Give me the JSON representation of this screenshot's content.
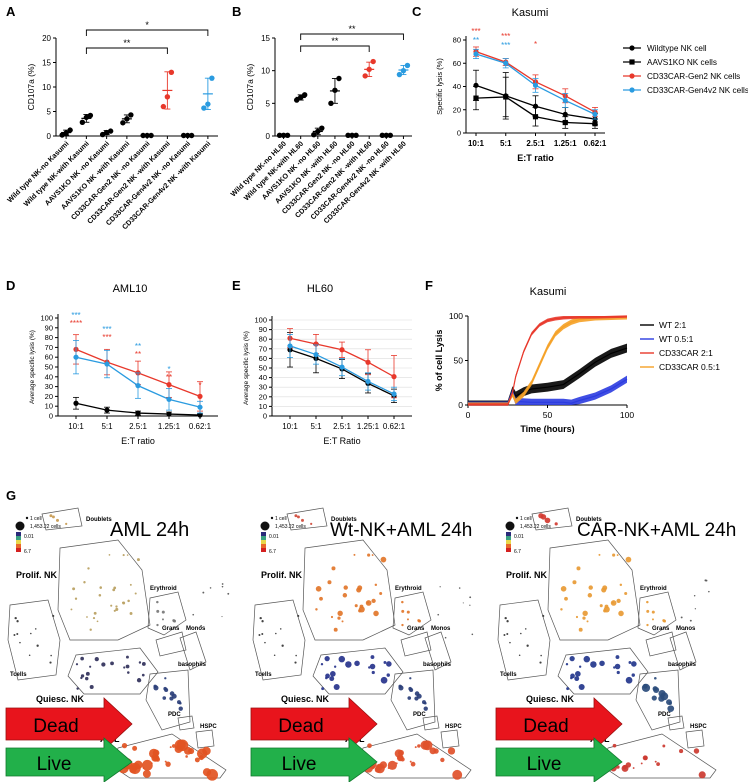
{
  "chart_data": [
    {
      "panel": "A",
      "type": "scatter",
      "ylabel": "CD107a (%)",
      "ylim": [
        0,
        20
      ],
      "yticks": [
        "0",
        "5",
        "10",
        "15",
        "20"
      ],
      "categories": [
        "Wild type NK-no Kasumi",
        "Wild type NK-with Kasumi",
        "AAVS1KO NK -no Kasumi",
        "AAVS1KO NK -with Kasumi",
        "CD33CAR-Gen2 NK -no Kasumi",
        "CD33CAR-Gen2 NK -with Kasumi",
        "CD33CAR-Gen4v2 NK -no Kasumi",
        "CD33CAR-Gen4v2 NK -with Kasumi"
      ],
      "colors": [
        "#000000",
        "#000000",
        "#000000",
        "#000000",
        "#000000",
        "#e8382b",
        "#000000",
        "#2a9be0"
      ],
      "points": [
        [
          0.2,
          0.6,
          1.2
        ],
        [
          2.8,
          3.8,
          4.2
        ],
        [
          0.3,
          0.7,
          1.0
        ],
        [
          2.7,
          3.5,
          4.3
        ],
        [
          0.1,
          0.1,
          0.1
        ],
        [
          6.0,
          8.0,
          13.0
        ],
        [
          0.1,
          0.1,
          0.1
        ],
        [
          5.7,
          6.5,
          11.8
        ]
      ],
      "means": [
        0.7,
        3.6,
        0.7,
        3.5,
        0.1,
        9.3,
        0.1,
        8.6
      ],
      "errors": [
        0.5,
        0.8,
        0.4,
        0.8,
        0.0,
        3.8,
        0.0,
        3.2
      ],
      "significance": [
        {
          "from": 1,
          "to": 5,
          "label": "**"
        },
        {
          "from": 1,
          "to": 7,
          "label": "*"
        }
      ]
    },
    {
      "panel": "B",
      "type": "scatter",
      "ylabel": "CD107a (%)",
      "ylim": [
        0,
        15
      ],
      "yticks": [
        "0",
        "5",
        "10",
        "15"
      ],
      "categories": [
        "Wild type NK-no HL60",
        "Wild type NK-with HL60",
        "AAVS1KO NK -no HL60",
        "AAVS1KO NK -with HL60",
        "CD33CAR-Gen2 NK -no HL60",
        "CD33CAR-Gen2 NK -with HL60",
        "CD33CAR-Gen4v2 NK -no HL60",
        "CD33CAR-Gen4v2 NK -with HL60"
      ],
      "colors": [
        "#000000",
        "#000000",
        "#000000",
        "#000000",
        "#000000",
        "#e8382b",
        "#000000",
        "#2a9be0"
      ],
      "points": [
        [
          0.1,
          0.1,
          0.1
        ],
        [
          5.5,
          5.9,
          6.3
        ],
        [
          0.2,
          0.7,
          1.2
        ],
        [
          5.0,
          7.0,
          8.8
        ],
        [
          0.1,
          0.1,
          0.1
        ],
        [
          9.2,
          10.2,
          11.4
        ],
        [
          0.1,
          0.1,
          0.1
        ],
        [
          9.4,
          10.0,
          10.8
        ]
      ],
      "means": [
        0.1,
        5.9,
        0.7,
        6.9,
        0.1,
        10.2,
        0.1,
        10.1
      ],
      "errors": [
        0.0,
        0.4,
        0.5,
        1.9,
        0.0,
        1.1,
        0.0,
        0.7
      ],
      "significance": [
        {
          "from": 1,
          "to": 5,
          "label": "**"
        },
        {
          "from": 1,
          "to": 7,
          "label": "**"
        }
      ]
    },
    {
      "panel": "C",
      "type": "line",
      "title": "Kasumi",
      "xlabel": "E:T ratio",
      "ylabel": "Specific lysis (%)",
      "ylim": [
        0,
        80
      ],
      "yticks": [
        "0",
        "20",
        "40",
        "60",
        "80"
      ],
      "categories": [
        "10:1",
        "5:1",
        "2.5:1",
        "1.25:1",
        "0.62:1"
      ],
      "series": [
        {
          "name": "Wildtype NK cell",
          "color": "#000000",
          "marker": "circle",
          "values": [
            41,
            32,
            23,
            16,
            12
          ],
          "err": [
            13,
            20,
            9,
            6,
            5
          ]
        },
        {
          "name": "AAVS1KO NK cells",
          "color": "#000000",
          "marker": "square",
          "values": [
            30,
            31,
            14,
            9,
            8
          ],
          "err": [
            10,
            17,
            8,
            5,
            4
          ]
        },
        {
          "name": "CD33CAR-Gen2 NK cells",
          "color": "#e8382b",
          "marker": "circle",
          "values": [
            70,
            61,
            44,
            32,
            18
          ],
          "err": [
            4,
            3,
            6,
            6,
            4
          ]
        },
        {
          "name": "CD33CAR-Gen4v2 NK cells",
          "color": "#2a9be0",
          "marker": "circle",
          "values": [
            68,
            60,
            41,
            28,
            16
          ],
          "err": [
            4,
            4,
            6,
            6,
            4
          ]
        }
      ],
      "annotations": [
        {
          "category": 0,
          "lines": [
            {
              "text": "***",
              "color": "#e8382b"
            },
            {
              "text": "**",
              "color": "#2a9be0"
            }
          ]
        },
        {
          "category": 1,
          "lines": [
            {
              "text": "***",
              "color": "#e8382b"
            },
            {
              "text": "***",
              "color": "#2a9be0"
            }
          ]
        },
        {
          "category": 2,
          "lines": [
            {
              "text": "*",
              "color": "#e8382b"
            }
          ]
        }
      ]
    },
    {
      "panel": "D",
      "type": "line",
      "title": "AML10",
      "xlabel": "E:T ratio",
      "ylabel": "Average specific lysis (%)",
      "ylim": [
        0,
        100
      ],
      "yticks": [
        "0",
        "10",
        "20",
        "30",
        "40",
        "50",
        "60",
        "70",
        "80",
        "90",
        "100"
      ],
      "categories": [
        "10:1",
        "5:1",
        "2.5:1",
        "1.25:1",
        "0.62:1"
      ],
      "series": [
        {
          "color": "#000000",
          "values": [
            13,
            6,
            3,
            2,
            1
          ],
          "err": [
            6,
            3,
            2,
            2,
            1
          ]
        },
        {
          "color": "#e8382b",
          "values": [
            68,
            55,
            44,
            32,
            20
          ],
          "err": [
            15,
            13,
            12,
            13,
            15
          ]
        },
        {
          "color": "#2a9be0",
          "values": [
            60,
            53,
            31,
            17,
            9
          ],
          "err": [
            17,
            14,
            13,
            11,
            6
          ]
        }
      ],
      "annotations": [
        {
          "category": 0,
          "lines": [
            {
              "text": "***",
              "color": "#2a9be0"
            },
            {
              "text": "****",
              "color": "#e8382b"
            }
          ]
        },
        {
          "category": 1,
          "lines": [
            {
              "text": "***",
              "color": "#2a9be0"
            },
            {
              "text": "***",
              "color": "#e8382b"
            }
          ]
        },
        {
          "category": 2,
          "lines": [
            {
              "text": "**",
              "color": "#2a9be0"
            },
            {
              "text": "**",
              "color": "#e8382b"
            }
          ]
        },
        {
          "category": 3,
          "lines": [
            {
              "text": "*",
              "color": "#2a9be0"
            },
            {
              "text": "**",
              "color": "#e8382b"
            }
          ]
        },
        {
          "category": 4,
          "lines": [
            {
              "text": "*",
              "color": "#e8382b"
            }
          ]
        }
      ]
    },
    {
      "panel": "E",
      "type": "line",
      "title": "HL60",
      "xlabel": "E:T Ratio",
      "ylabel": "Average specific lysis (%)",
      "ylim": [
        0,
        100
      ],
      "yticks": [
        "0",
        "10",
        "20",
        "30",
        "40",
        "50",
        "60",
        "70",
        "80",
        "90",
        "100"
      ],
      "categories": [
        "10:1",
        "5:1",
        "2.5:1",
        "1.25:1",
        "0.62:1"
      ],
      "series": [
        {
          "color": "#000000",
          "values": [
            69,
            60,
            49,
            34,
            21
          ],
          "err": [
            18,
            15,
            10,
            10,
            7
          ]
        },
        {
          "color": "#e8382b",
          "values": [
            81,
            75,
            69,
            56,
            41
          ],
          "err": [
            10,
            10,
            8,
            13,
            22
          ]
        },
        {
          "color": "#2a9be0",
          "values": [
            73,
            64,
            51,
            36,
            23
          ],
          "err": [
            12,
            10,
            9,
            9,
            7
          ]
        }
      ]
    },
    {
      "panel": "F",
      "type": "line",
      "title": "Kasumi",
      "xlabel": "Time (hours)",
      "ylabel": "% of cell Lysis",
      "xlim": [
        0,
        100
      ],
      "ylim": [
        0,
        100
      ],
      "xticks": [
        "0",
        "50",
        "100"
      ],
      "yticks": [
        "0",
        "50",
        "100"
      ],
      "series": [
        {
          "name": "WT 2:1",
          "color": "#000000",
          "x": [
            0,
            25,
            28,
            30,
            35,
            40,
            50,
            60,
            70,
            80,
            90,
            100
          ],
          "values": [
            0,
            0,
            16,
            10,
            15,
            18,
            20,
            23,
            35,
            48,
            58,
            64
          ],
          "band": 5
        },
        {
          "name": "WT 0.5:1",
          "color": "#2b3be0",
          "x": [
            0,
            25,
            28,
            30,
            40,
            50,
            60,
            65,
            70,
            80,
            90,
            100
          ],
          "values": [
            0,
            0,
            14,
            4,
            3,
            3,
            3,
            2,
            5,
            10,
            18,
            29
          ],
          "band": 4
        },
        {
          "name": "CD33CAR 2:1",
          "color": "#e8382b",
          "x": [
            0,
            25,
            28,
            30,
            35,
            40,
            45,
            50,
            55,
            60,
            70,
            80,
            100
          ],
          "values": [
            0,
            0,
            14,
            32,
            60,
            80,
            90,
            95,
            97,
            98,
            99,
            99,
            100
          ],
          "band": 2
        },
        {
          "name": "CD33CAR 0.5:1",
          "color": "#f5a126",
          "x": [
            0,
            25,
            28,
            30,
            35,
            40,
            45,
            50,
            55,
            60,
            65,
            70,
            80,
            100
          ],
          "values": [
            0,
            0,
            12,
            4,
            12,
            25,
            45,
            65,
            80,
            88,
            93,
            96,
            98,
            99
          ],
          "band": 3
        }
      ]
    }
  ],
  "figure": {
    "labels": {
      "a": "A",
      "b": "B",
      "c": "C",
      "d": "D",
      "e": "E",
      "f": "F",
      "g": "G"
    },
    "accent": {
      "red": "#e8382b",
      "blue": "#2a9be0",
      "orange": "#f5a126",
      "dark_blue": "#2b3be0"
    }
  },
  "spade": {
    "legend": {
      "size_small": "1 cell",
      "size_large": "1,453.22 cells",
      "color_top": "0.01",
      "color_bottom": "6.7"
    },
    "cluster_labels": {
      "doublets": "Doublets",
      "prolif": "Prolif. NK",
      "erythroid": "Erythroid",
      "grans": "Grans",
      "monos": "Monos",
      "tcells": "Tcells",
      "quiesc": "Quiesc. NK",
      "basophils": "basophils",
      "pdc": "PDC",
      "hspc": "HSPC",
      "aml": "AML"
    },
    "arrows": {
      "dead": "Dead",
      "live": "Live"
    },
    "panels": [
      {
        "title": "AML 24h",
        "prolif_color": "#b8a060",
        "quiesc_color": "#30305a",
        "basophil_color": "#2a3e78",
        "aml_color": "#e25422",
        "aml_density": 1.0,
        "doublet_color": "#c89a50"
      },
      {
        "title": "Wt-NK+AML 24h",
        "prolif_color": "#e2762a",
        "quiesc_color": "#27338c",
        "basophil_color": "#2a3e78",
        "aml_color": "#e0502a",
        "aml_density": 0.75,
        "doublet_color": "#d04a3a"
      },
      {
        "title": "CAR-NK+AML 24h",
        "prolif_color": "#e89a34",
        "quiesc_color": "#23368c",
        "basophil_color": "#2b4c7c",
        "aml_color": "#cc3a30",
        "aml_density": 0.35,
        "doublet_color": "#d23a30"
      }
    ]
  }
}
